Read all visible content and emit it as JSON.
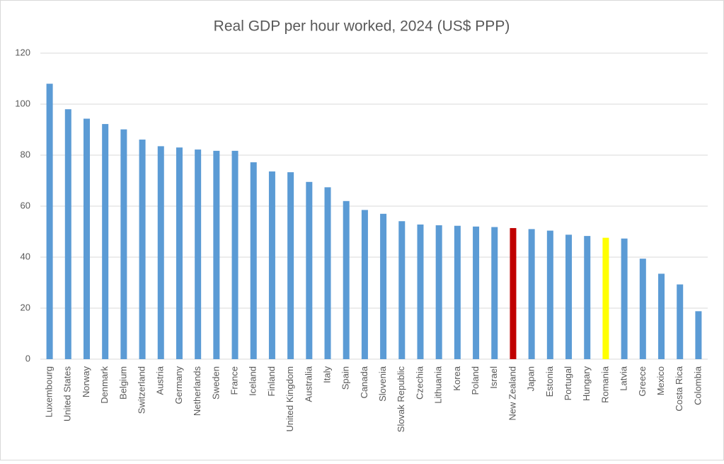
{
  "chart_data": {
    "type": "bar",
    "title": "Real GDP per hour worked, 2024 (US$ PPP)",
    "categories": [
      "Luxembourg",
      "United States",
      "Norway",
      "Denmark",
      "Belgium",
      "Switzerland",
      "Austria",
      "Germany",
      "Netherlands",
      "Sweden",
      "France",
      "Iceland",
      "Finland",
      "United Kingdom",
      "Australia",
      "Italy",
      "Spain",
      "Canada",
      "Slovenia",
      "Slovak Republic",
      "Czechia",
      "Lithuania",
      "Korea",
      "Poland",
      "Israel",
      "New Zealand",
      "Japan",
      "Estonia",
      "Portugal",
      "Hungary",
      "Romania",
      "Latvia",
      "Greece",
      "Mexico",
      "Costa Rica",
      "Colombia"
    ],
    "values": [
      108,
      98,
      94.3,
      92.2,
      90.1,
      86.1,
      83.5,
      83,
      82.2,
      81.7,
      81.7,
      77.2,
      73.6,
      73.3,
      69.5,
      67.4,
      62,
      58.5,
      57,
      54.1,
      52.8,
      52.5,
      52.3,
      52,
      51.8,
      51.4,
      51,
      50.4,
      48.8,
      48.3,
      47.6,
      47.3,
      39.4,
      33.5,
      29.3,
      18.8
    ],
    "colors": [
      "#5b9bd5",
      "#5b9bd5",
      "#5b9bd5",
      "#5b9bd5",
      "#5b9bd5",
      "#5b9bd5",
      "#5b9bd5",
      "#5b9bd5",
      "#5b9bd5",
      "#5b9bd5",
      "#5b9bd5",
      "#5b9bd5",
      "#5b9bd5",
      "#5b9bd5",
      "#5b9bd5",
      "#5b9bd5",
      "#5b9bd5",
      "#5b9bd5",
      "#5b9bd5",
      "#5b9bd5",
      "#5b9bd5",
      "#5b9bd5",
      "#5b9bd5",
      "#5b9bd5",
      "#5b9bd5",
      "#c00000",
      "#5b9bd5",
      "#5b9bd5",
      "#5b9bd5",
      "#5b9bd5",
      "#ffff00",
      "#5b9bd5",
      "#5b9bd5",
      "#5b9bd5",
      "#5b9bd5",
      "#5b9bd5"
    ],
    "ylim": [
      0,
      120
    ],
    "yticks": [
      0,
      20,
      40,
      60,
      80,
      100,
      120
    ],
    "grid": true
  }
}
